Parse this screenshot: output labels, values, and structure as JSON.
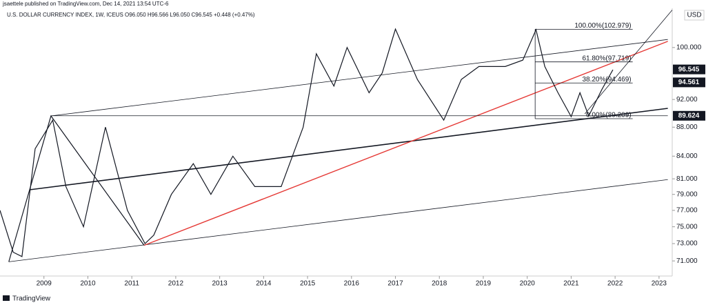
{
  "chart_data": {
    "type": "line",
    "header": "jsaettele published on TradingView.com, Dec 14, 2021 13:54 UTC-6",
    "title": "U.S. DOLLAR CURRENCY INDEX, 1W, ICEUS  O96.050  H96.566  L96.050  C96.545  +0.448 (+0.47%)",
    "currency": "USD",
    "footer": "TradingView",
    "log_scale": true,
    "grid": false,
    "color": "#131722",
    "x": [
      2008.0,
      2008.3,
      2008.5,
      2008.8,
      2009.2,
      2009.5,
      2009.9,
      2010.4,
      2010.9,
      2011.3,
      2011.5,
      2011.9,
      2012.4,
      2012.8,
      2013.3,
      2013.8,
      2014.4,
      2014.9,
      2015.2,
      2015.6,
      2015.9,
      2016.4,
      2016.7,
      2017.0,
      2017.5,
      2018.1,
      2018.5,
      2018.9,
      2019.5,
      2019.9,
      2020.2,
      2020.4,
      2020.7,
      2021.0,
      2021.2,
      2021.4,
      2021.7,
      2021.95
    ],
    "values": [
      77,
      72,
      71.5,
      85,
      89,
      80,
      75,
      88,
      77,
      73,
      74,
      79,
      83,
      79,
      84,
      80,
      80,
      88,
      99,
      94,
      100,
      93,
      96,
      103,
      95,
      89,
      95,
      97,
      97,
      98,
      102.9,
      97,
      93,
      89.5,
      93,
      89.6,
      93.5,
      96.5
    ],
    "xlim": [
      2008.0,
      2023.3
    ],
    "xticks": [
      2009,
      2010,
      2011,
      2012,
      2013,
      2014,
      2015,
      2016,
      2017,
      2018,
      2019,
      2020,
      2021,
      2022,
      2023
    ],
    "ylim": [
      69.3,
      106.5
    ],
    "yticks": [
      {
        "value": 71,
        "label": "71.000"
      },
      {
        "value": 73,
        "label": "73.000"
      },
      {
        "value": 75,
        "label": "75.000"
      },
      {
        "value": 77,
        "label": "77.000"
      },
      {
        "value": 79,
        "label": "79.000"
      },
      {
        "value": 81,
        "label": "81.000"
      },
      {
        "value": 84,
        "label": "84.000"
      },
      {
        "value": 88,
        "label": "88.000"
      },
      {
        "value": 92,
        "label": "92.000"
      },
      {
        "value": 100,
        "label": "100.000"
      }
    ],
    "price_labels": [
      96.545,
      94.561,
      89.624
    ],
    "fib": {
      "x": [
        2020.18,
        2022.4
      ],
      "color": "#131722",
      "levels": [
        {
          "value": 102.979,
          "label": "100.00%(102.979)"
        },
        {
          "value": 97.719,
          "label": "61.80%(97.719)"
        },
        {
          "value": 94.469,
          "label": "38.20%(94.469)"
        },
        {
          "value": 89.209,
          "label": "0.00%(89.209)"
        }
      ]
    },
    "trendlines": [
      {
        "x": [
          2008.2,
          2023.2
        ],
        "y": [
          70.9,
          80.9
        ],
        "color": "#131722",
        "width": 0.8
      },
      {
        "x": [
          2009.16,
          2023.2
        ],
        "y": [
          89.6,
          101.3
        ],
        "color": "#131722",
        "width": 0.8
      },
      {
        "x": [
          2008.69,
          2023.2
        ],
        "y": [
          79.6,
          90.7
        ],
        "color": "#131722",
        "width": 1.6
      },
      {
        "x": [
          2011.28,
          2023.2
        ],
        "y": [
          72.8,
          101.0
        ],
        "color": "#e53935",
        "width": 1.4
      },
      {
        "x": [
          2008.2,
          2009.16,
          2011.28
        ],
        "y": [
          70.9,
          89.6,
          72.8
        ],
        "color": "#131722",
        "width": 1.2
      },
      {
        "x": [
          2021.31,
          2023.3
        ],
        "y": [
          89.9,
          106.2
        ],
        "color": "#131722",
        "width": 0.8
      },
      {
        "x": [
          2009.16,
          2023.2
        ],
        "y": [
          89.624,
          89.624
        ],
        "color": "#131722",
        "width": 0.8
      }
    ]
  }
}
